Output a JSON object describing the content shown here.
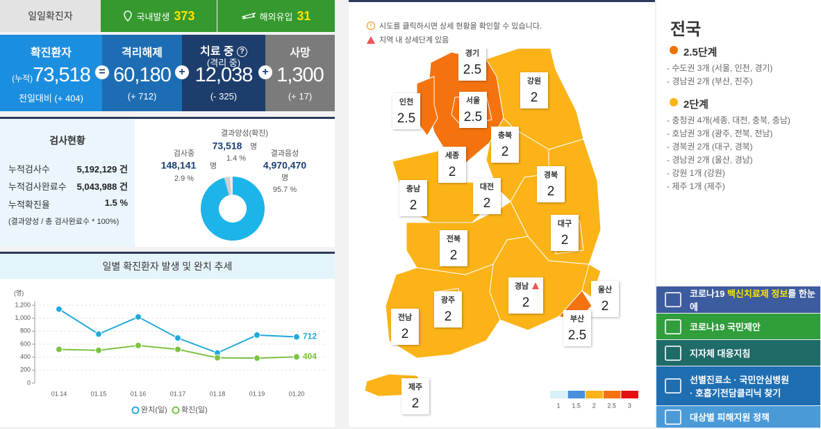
{
  "header": {
    "title": "일일확진자",
    "domestic": {
      "label": "국내발생",
      "value": "373"
    },
    "overseas": {
      "label": "해외유입",
      "value": "31"
    }
  },
  "stats": {
    "confirmed": {
      "label": "확진환자",
      "prefix": "(누적)",
      "value": "73,518",
      "change": "전일대비 (+ 404)"
    },
    "released": {
      "label": "격리해제",
      "value": "60,180",
      "change": "(+ 712)"
    },
    "treating": {
      "label": "치료 중",
      "help": "?",
      "sublabel": "(격리 중)",
      "value": "12,038",
      "change": "(- 325)"
    },
    "deaths": {
      "label": "사망",
      "value": "1,300",
      "change": "(+ 17)"
    },
    "operators": [
      "=",
      "+",
      "+"
    ]
  },
  "tests": {
    "title": "검사현황",
    "rows": [
      {
        "label": "누적검사수",
        "value": "5,192,129",
        "unit": "건"
      },
      {
        "label": "누적검사완료수",
        "value": "5,043,988",
        "unit": "건"
      },
      {
        "label": "누적확진율",
        "value": "1.5",
        "unit": "%"
      }
    ],
    "note": "(결과양성 / 총 검사완료수 * 100%)"
  },
  "chart_data": [
    {
      "type": "line",
      "title": "일별 확진환자 발생 및 완치 추세",
      "y_unit": "(명)",
      "categories": [
        "01.14",
        "01.15",
        "01.16",
        "01.17",
        "01.18",
        "01.19",
        "01.20"
      ],
      "series": [
        {
          "name": "완치(일)",
          "color": "#22a9d8",
          "values": [
            1140,
            755,
            1020,
            695,
            465,
            740,
            712
          ]
        },
        {
          "name": "확진(일)",
          "color": "#7cc242",
          "values": [
            520,
            505,
            580,
            520,
            390,
            385,
            404
          ]
        }
      ],
      "ylim": [
        0,
        1200
      ],
      "yticks": [
        0,
        200,
        400,
        600,
        800,
        {
          "value": 1000,
          "label": "1,000"
        },
        {
          "value": 1200,
          "label": "1,200"
        }
      ],
      "grid": true
    },
    {
      "type": "pie",
      "categories": [
        "검사중",
        "결과양성(확진)",
        "결과음성"
      ],
      "counts": [
        "148,141",
        "73,518",
        "4,970,470"
      ],
      "count_unit": "명",
      "values": [
        2.9,
        1.4,
        95.7
      ],
      "value_labels": [
        "2.9 %",
        "1.4 %",
        "95.7 %"
      ],
      "colors": [
        "#cfcfcf",
        "#eeeeee",
        "#1cb4e9"
      ]
    }
  ],
  "map": {
    "notice": "시도를 클릭하시면 상세 현황을 확인할 수 있습니다.",
    "detail_note": "지역 내 상세단계 있음",
    "regions": [
      {
        "name": "경기",
        "level": 2.5
      },
      {
        "name": "강원",
        "level": 2
      },
      {
        "name": "인천",
        "level": 2.5
      },
      {
        "name": "서울",
        "level": 2.5
      },
      {
        "name": "충북",
        "level": 2
      },
      {
        "name": "세종",
        "level": 2
      },
      {
        "name": "경북",
        "level": 2
      },
      {
        "name": "대전",
        "level": 2
      },
      {
        "name": "충남",
        "level": 2
      },
      {
        "name": "대구",
        "level": 2
      },
      {
        "name": "전북",
        "level": 2
      },
      {
        "name": "경남",
        "level": 2,
        "detail": true
      },
      {
        "name": "울산",
        "level": 2
      },
      {
        "name": "광주",
        "level": 2
      },
      {
        "name": "전남",
        "level": 2
      },
      {
        "name": "부산",
        "level": 2.5
      },
      {
        "name": "제주",
        "level": 2
      }
    ],
    "legend": [
      {
        "level": 1,
        "color": "#d7f0fa"
      },
      {
        "level": 1.5,
        "color": "#4a8fdb"
      },
      {
        "level": 2,
        "color": "#fbb317"
      },
      {
        "level": 2.5,
        "color": "#f4730f"
      },
      {
        "level": 3,
        "color": "#e3110f"
      }
    ]
  },
  "side": {
    "title": "전국",
    "groups": [
      {
        "name": "2.5단계",
        "color": "#f07100",
        "items": [
          "- 수도권 3개 (서울, 인천, 경기)",
          "- 경남권 2개 (부산, 진주)"
        ]
      },
      {
        "name": "2단계",
        "color": "#fbb613",
        "items": [
          "- 충청권 4개(세종, 대전, 충북, 충남)",
          "- 호남권 3개 (광주, 전북, 전남)",
          "- 경북권 2개 (대구, 경북)",
          "- 경남권 2개 (울산, 경남)",
          "- 강원 1개 (강원)",
          "- 제주 1개 (제주)"
        ]
      }
    ],
    "links": [
      {
        "parts": [
          "코로나19 ",
          "백신치료제 정보",
          "를 한눈에"
        ]
      },
      {
        "lines": [
          "코로나19 국민제안"
        ]
      },
      {
        "lines": [
          "지자체 대응지침"
        ]
      },
      {
        "lines": [
          "선별진료소 · 국민안심병원",
          "· 호흡기전담클리닉 찾기"
        ]
      },
      {
        "lines": [
          "대상별 피해지원 정책"
        ]
      }
    ]
  }
}
